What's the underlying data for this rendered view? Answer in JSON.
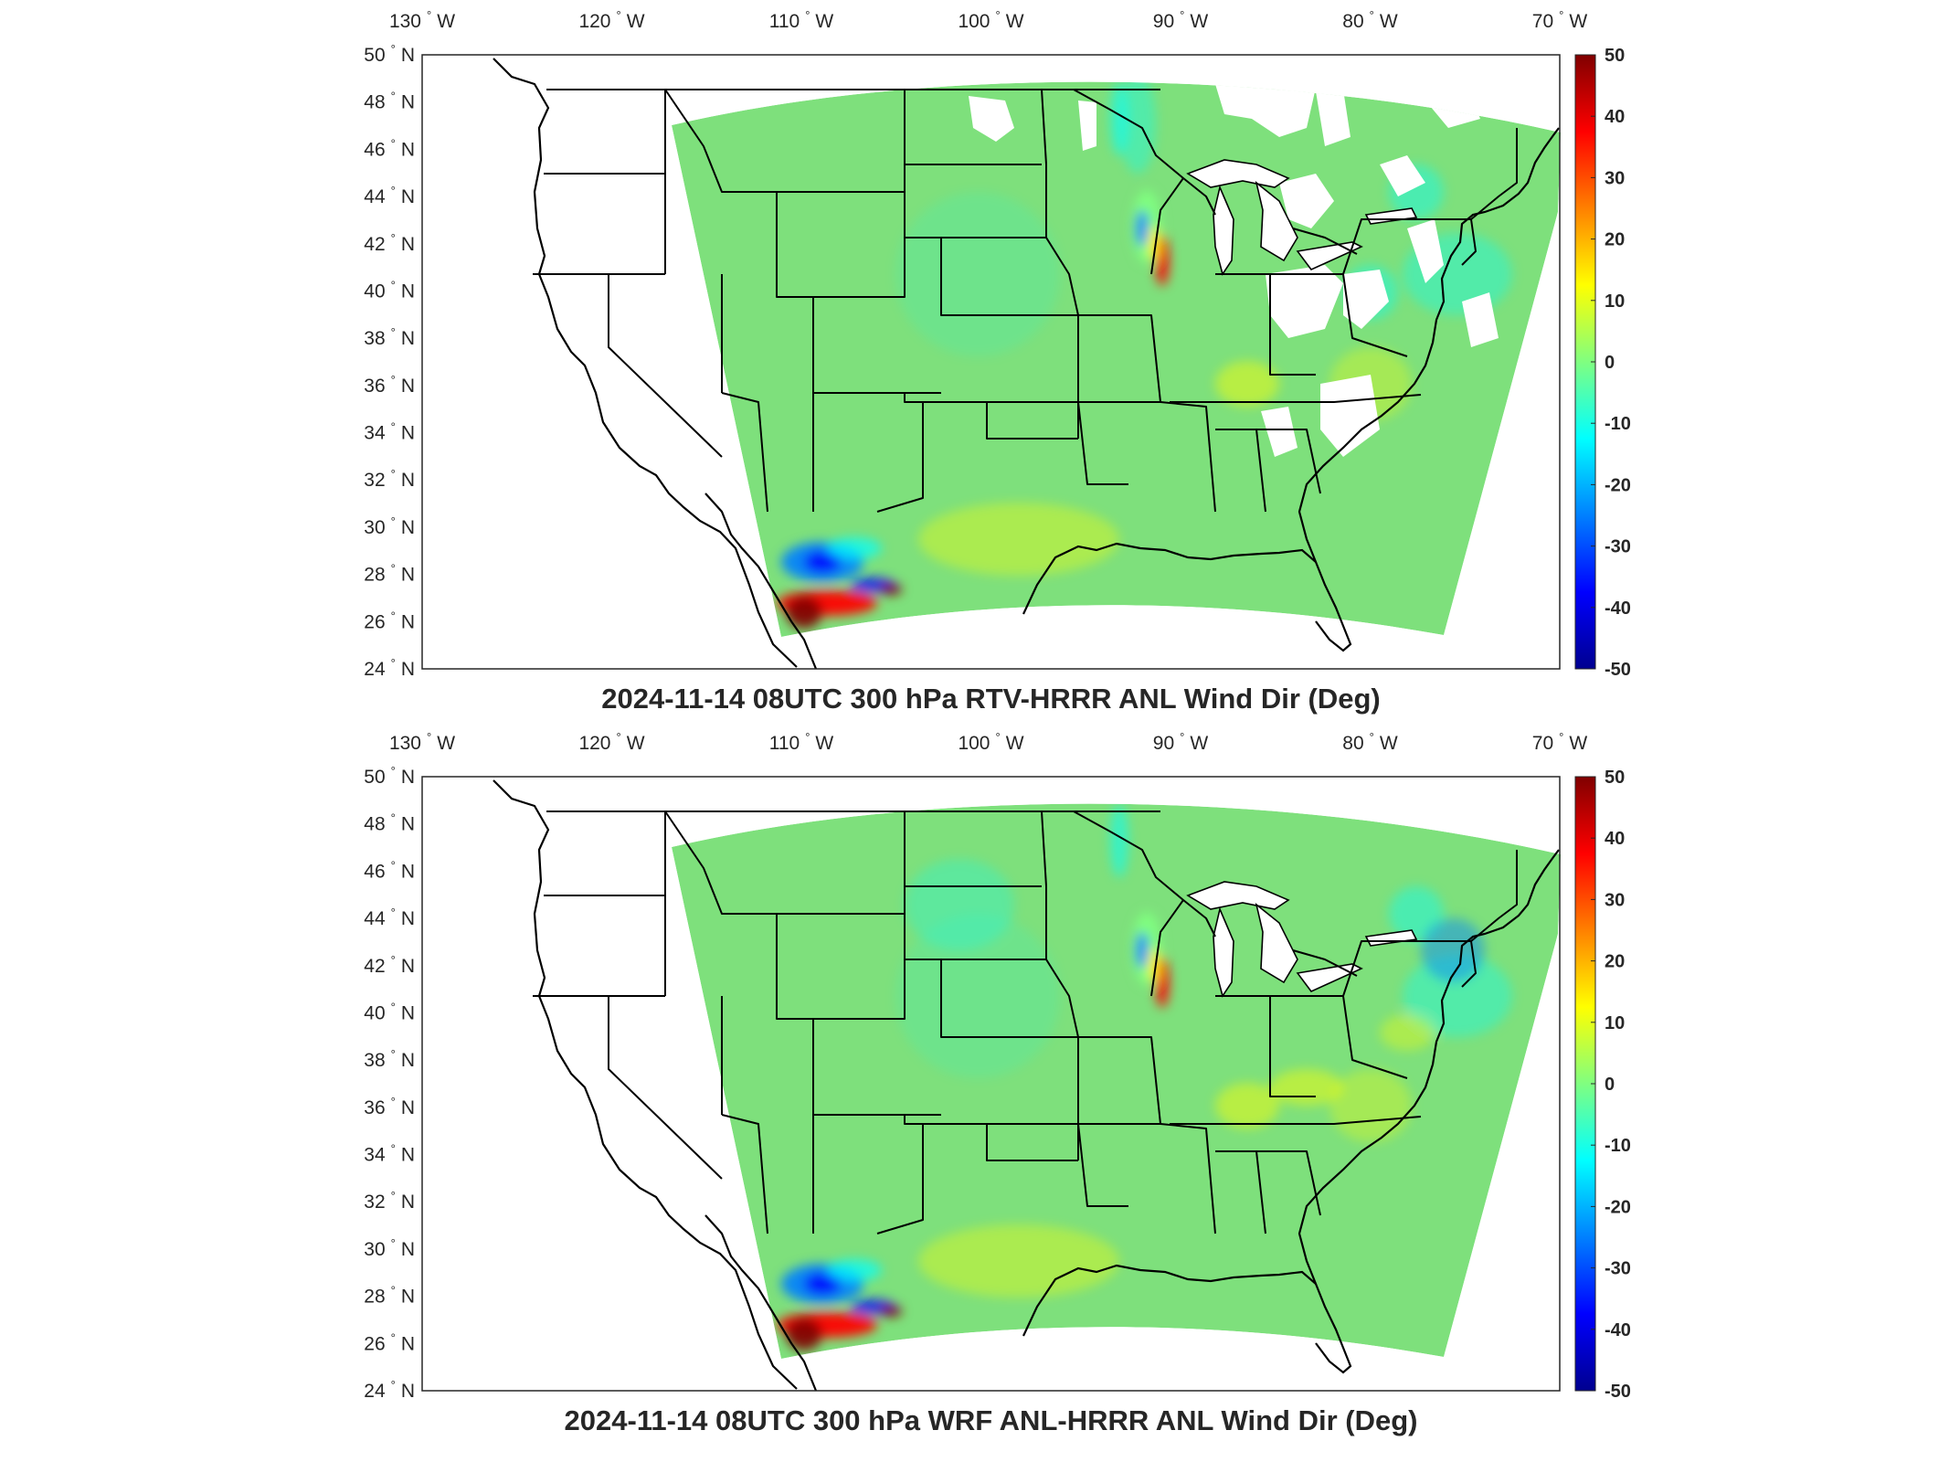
{
  "panels": [
    {
      "id": "top",
      "title": "2024-11-14 08UTC 300 hPa RTV-HRRR ANL Wind Dir (Deg)"
    },
    {
      "id": "bottom",
      "title": "2024-11-14 08UTC 300 hPa WRF ANL-HRRR ANL Wind Dir (Deg)"
    }
  ],
  "map": {
    "longitude_ticks": [
      "130",
      "120",
      "110",
      "100",
      "90",
      "80",
      "70"
    ],
    "longitude_suffix": "W",
    "latitude_ticks": [
      "50",
      "48",
      "46",
      "44",
      "42",
      "40",
      "38",
      "36",
      "34",
      "32",
      "30",
      "28",
      "26",
      "24"
    ],
    "latitude_suffix": "N",
    "degree_symbol": "°",
    "lon_range": [
      -130,
      -70
    ],
    "lat_range": [
      24,
      50
    ]
  },
  "colorbar": {
    "ticks": [
      "50",
      "40",
      "30",
      "20",
      "10",
      "0",
      "-10",
      "-20",
      "-30",
      "-40",
      "-50"
    ],
    "range": [
      -50,
      50
    ],
    "colormap": "jet",
    "colors": [
      "#00008f",
      "#0000ff",
      "#0080ff",
      "#00ffff",
      "#80ff80",
      "#ffff00",
      "#ff8000",
      "#ff0000",
      "#800000"
    ]
  },
  "field": {
    "background_color": "#7ee07c",
    "missing_color": "#ffffff"
  }
}
